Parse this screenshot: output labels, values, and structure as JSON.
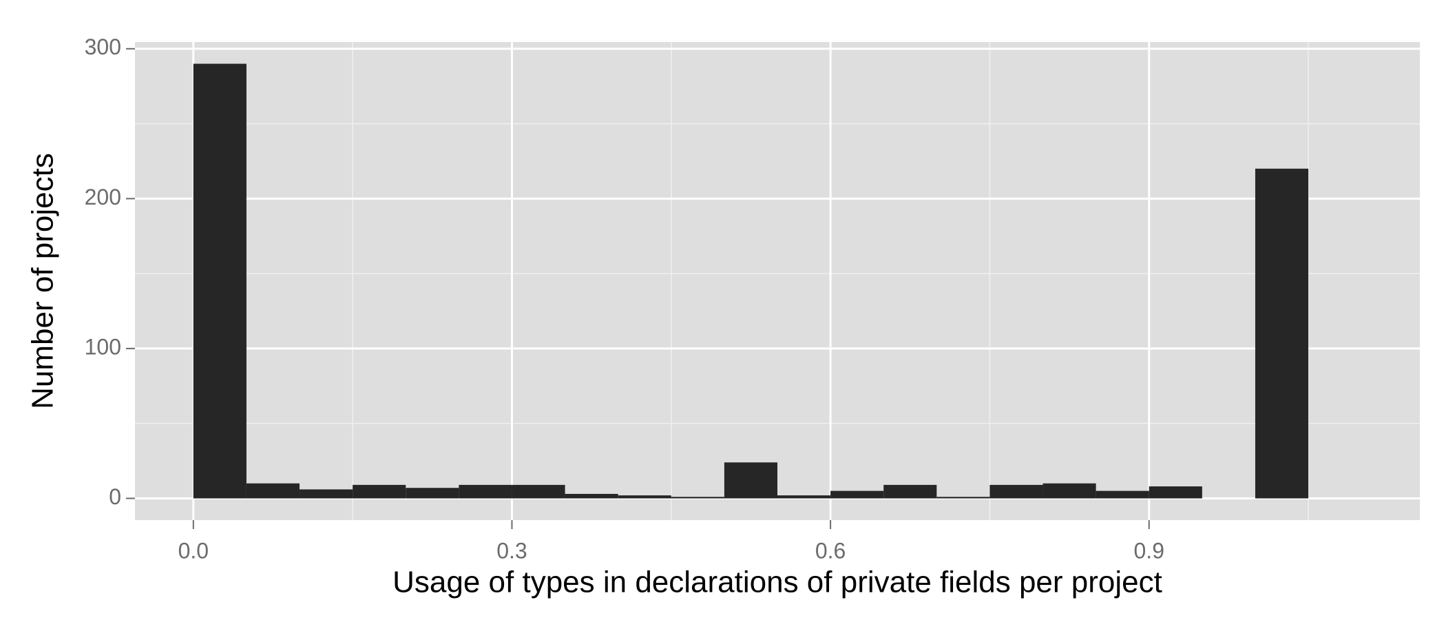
{
  "chart_data": {
    "type": "histogram",
    "xlabel": "Usage of types in declarations of private fields per project",
    "ylabel": "Number of projects",
    "bins": [
      0,
      0.05,
      0.1,
      0.15,
      0.2,
      0.25,
      0.3,
      0.35,
      0.4,
      0.45,
      0.5,
      0.55,
      0.6,
      0.65,
      0.7,
      0.75,
      0.8,
      0.85,
      0.9,
      0.95,
      1.0,
      1.05,
      1.1
    ],
    "values": [
      290,
      10,
      6,
      9,
      7,
      9,
      9,
      3,
      2,
      1,
      24,
      2,
      5,
      9,
      1,
      9,
      10,
      5,
      8,
      0,
      220,
      0
    ],
    "color": "#262626",
    "panel_color": "#dedede",
    "xlim": [
      -0.055,
      1.155
    ],
    "ylim": [
      -14.5,
      304.5
    ],
    "xticks": [
      {
        "value": 0,
        "label": "0.0"
      },
      0.3,
      0.6,
      0.9
    ],
    "yticks": [
      0,
      100,
      200,
      300
    ],
    "xminor": [
      0.15,
      0.45,
      0.75,
      1.05
    ],
    "yminor": [
      50,
      150,
      250
    ],
    "grid": true
  }
}
